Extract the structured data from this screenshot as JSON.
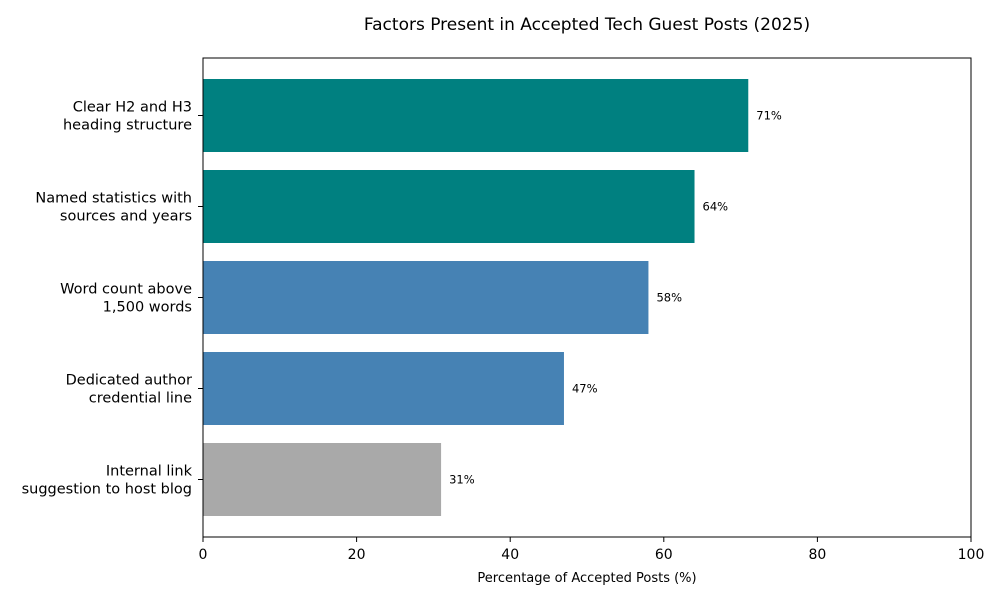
{
  "chart_data": {
    "type": "bar",
    "orientation": "horizontal",
    "title": "Factors Present in Accepted Tech Guest Posts (2025)",
    "xlabel": "Percentage of Accepted Posts (%)",
    "ylabel": "",
    "xlim": [
      0,
      100
    ],
    "x_ticks": [
      "0",
      "20",
      "40",
      "60",
      "80",
      "100"
    ],
    "grid": false,
    "categories": [
      [
        "Clear H2 and H3",
        "heading structure"
      ],
      [
        "Named statistics with",
        "sources and years"
      ],
      [
        "Word count above",
        "1,500 words"
      ],
      [
        "Dedicated author",
        "credential line"
      ],
      [
        "Internal link",
        "suggestion to host blog"
      ]
    ],
    "values": [
      71,
      64,
      58,
      47,
      31
    ],
    "value_labels": [
      "71%",
      "64%",
      "58%",
      "47%",
      "31%"
    ],
    "bar_colors": [
      "#008080",
      "#008080",
      "#4682b4",
      "#4682b4",
      "#a9a9a9"
    ]
  }
}
